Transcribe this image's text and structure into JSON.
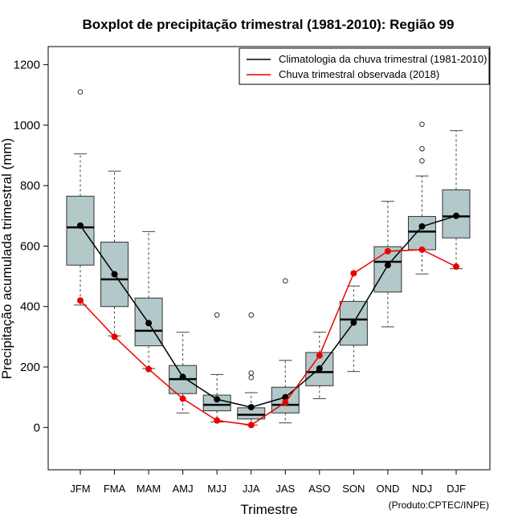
{
  "chart_data": {
    "type": "boxplot",
    "title": "Boxplot de precipitação trimestral (1981-2010): Região 99",
    "xlabel": "Trimestre",
    "ylabel": "Precipitação acumulada trimestral (mm)",
    "ylim": [
      -140,
      1260
    ],
    "yticks": [
      0,
      200,
      400,
      600,
      800,
      1000,
      1200
    ],
    "categories": [
      "JFM",
      "FMA",
      "MAM",
      "AMJ",
      "MJJ",
      "JJA",
      "JAS",
      "ASO",
      "SON",
      "OND",
      "NDJ",
      "DJF"
    ],
    "boxes": [
      {
        "min": 405,
        "q1": 537,
        "median": 662,
        "q3": 765,
        "max": 905,
        "outliers": [
          1110
        ]
      },
      {
        "min": 303,
        "q1": 400,
        "median": 490,
        "q3": 613,
        "max": 848,
        "outliers": []
      },
      {
        "min": 195,
        "q1": 270,
        "median": 320,
        "q3": 428,
        "max": 648,
        "outliers": []
      },
      {
        "min": 48,
        "q1": 112,
        "median": 160,
        "q3": 205,
        "max": 315,
        "outliers": []
      },
      {
        "min": 18,
        "q1": 55,
        "median": 75,
        "q3": 107,
        "max": 175,
        "outliers": [
          372
        ]
      },
      {
        "min": 8,
        "q1": 28,
        "median": 42,
        "q3": 65,
        "max": 115,
        "outliers": [
          372,
          180,
          165
        ]
      },
      {
        "min": 15,
        "q1": 48,
        "median": 75,
        "q3": 133,
        "max": 222,
        "outliers": [
          485
        ]
      },
      {
        "min": 95,
        "q1": 138,
        "median": 183,
        "q3": 248,
        "max": 315,
        "outliers": []
      },
      {
        "min": 185,
        "q1": 272,
        "median": 357,
        "q3": 417,
        "max": 468,
        "outliers": []
      },
      {
        "min": 333,
        "q1": 448,
        "median": 548,
        "q3": 598,
        "max": 748,
        "outliers": []
      },
      {
        "min": 508,
        "q1": 588,
        "median": 648,
        "q3": 698,
        "max": 832,
        "outliers": [
          1003,
          922,
          882
        ]
      },
      {
        "min": 525,
        "q1": 627,
        "median": 698,
        "q3": 786,
        "max": 982,
        "outliers": []
      }
    ],
    "series": [
      {
        "name": "Climatologia da chuva trimestral (1981-2010)",
        "color": "#000000",
        "values": [
          668,
          507,
          345,
          167,
          93,
          67,
          100,
          195,
          347,
          537,
          665,
          700
        ]
      },
      {
        "name": "Chuva trimestral observada (2018)",
        "color": "#ee0000",
        "values": [
          420,
          300,
          193,
          95,
          23,
          8,
          83,
          238,
          510,
          583,
          588,
          532
        ]
      }
    ],
    "box_color": "#b3c8c8",
    "credit": "(Produto:CPTEC/INPE)"
  }
}
